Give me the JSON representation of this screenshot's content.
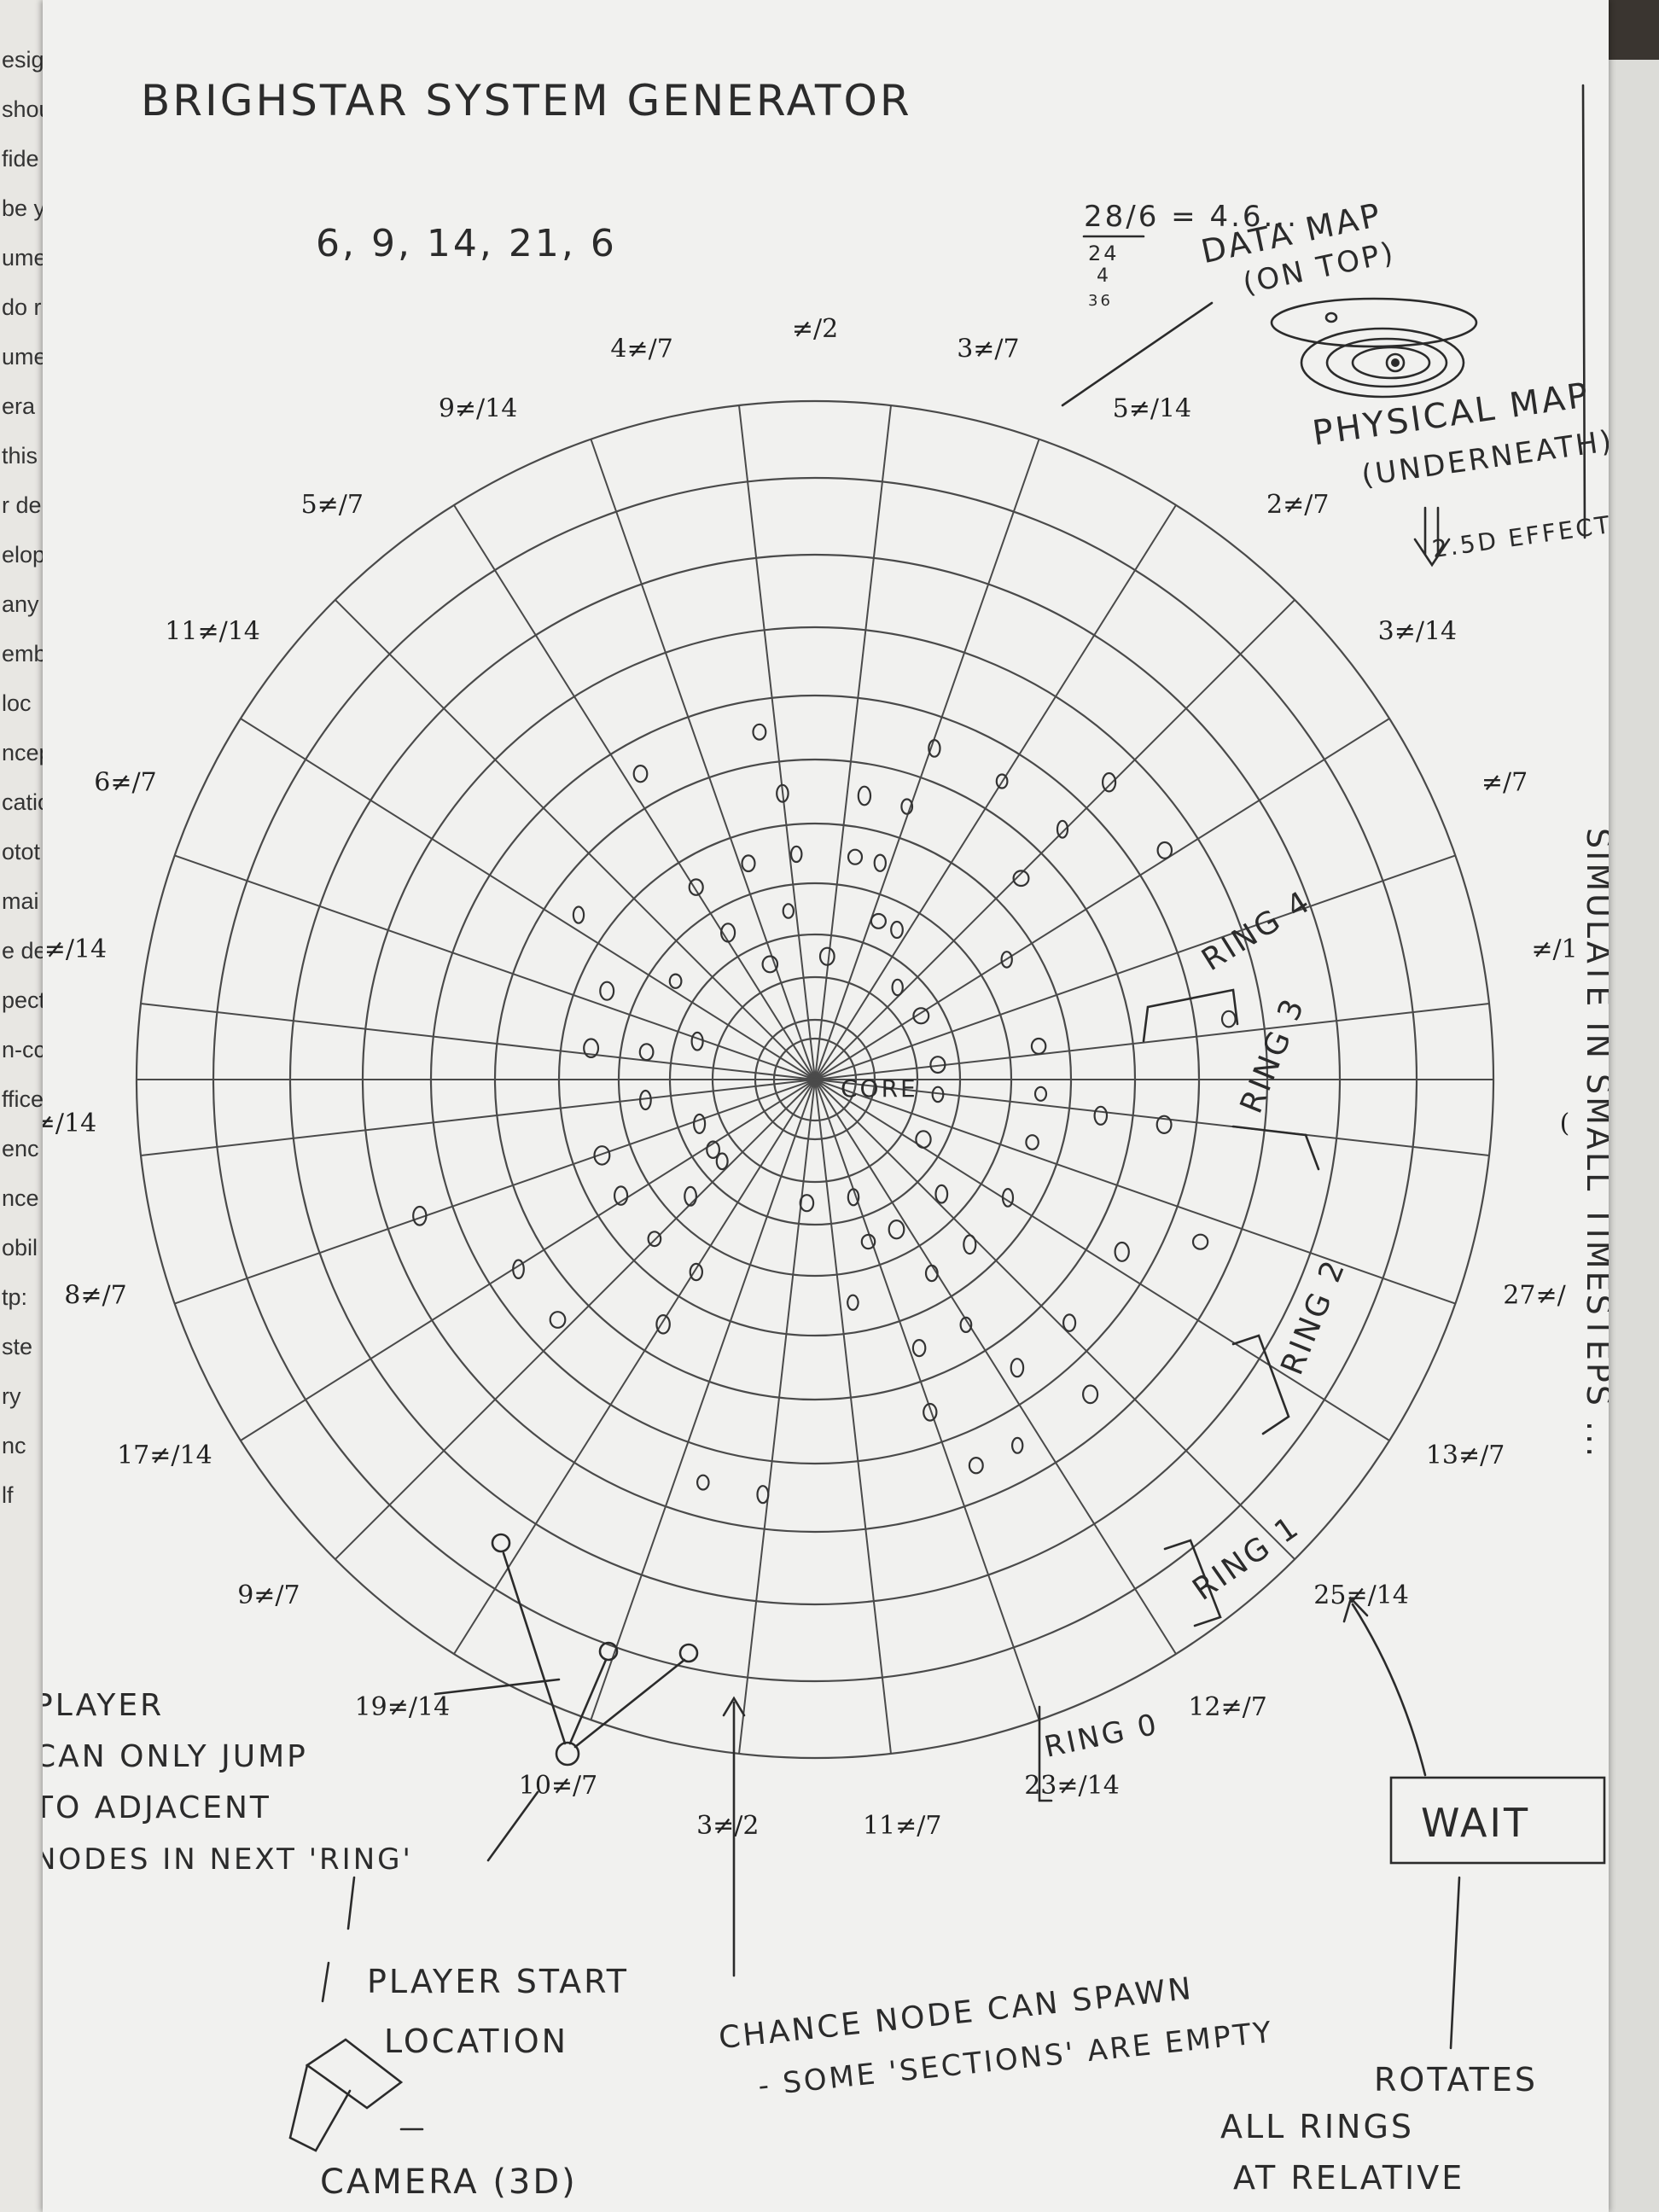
{
  "title": "BRIGHSTAR SYSTEM GENERATOR",
  "sequence_note": "6, 9, 14, 21, 6",
  "calc_note": {
    "line1": "28/6 = 4.6...",
    "line2": "24",
    "line3": "4",
    "line4": "36"
  },
  "data_map_label": {
    "line1": "DATA MAP",
    "line2": "(ON TOP)"
  },
  "physical_map_label": {
    "line1": "PHYSICAL MAP",
    "line2": "(UNDERNEATH)",
    "line3": "2.5D EFFECT"
  },
  "segment_labels": [
    "≠/2",
    "3≠/7",
    "5≠/14",
    "2≠/7",
    "3≠/14",
    "≠/7",
    "≠/1",
    "(",
    "27≠/",
    "13≠/7",
    "25≠/14",
    "12≠/7",
    "23≠/14",
    "11≠/7",
    "3≠/2",
    "10≠/7",
    "19≠/14",
    "9≠/7",
    "17≠/14",
    "8≠/7",
    "≠/14",
    "≠/14",
    "6≠/7",
    "11≠/14",
    "5≠/7",
    "9≠/14",
    "4≠/7"
  ],
  "core_label": "CORE",
  "ring_labels": [
    "RING 4",
    "RING 3",
    "RING 2",
    "RING 1",
    "RING 0"
  ],
  "annotations": {
    "player_jump": {
      "line1": "PLAYER",
      "line2": "CAN ONLY JUMP",
      "line3": "TO ADJACENT",
      "line4": "NODES IN NEXT 'RING'"
    },
    "player_start": {
      "line1": "PLAYER START",
      "line2": "LOCATION"
    },
    "chance_node": {
      "line1": "CHANCE NODE CAN SPAWN",
      "line2": "- SOME 'SECTIONS' ARE EMPTY"
    },
    "camera": "CAMERA (3D)",
    "wait": "WAIT",
    "rotates": {
      "line1": "ROTATES",
      "line2": "ALL RINGS",
      "line3": "AT RELATIVE"
    },
    "side_note": "SIMULATE IN SMALL TIMESTEPS ...",
    "left_fragments": [
      "esigr",
      "shou",
      "fide",
      "be y",
      "ume",
      "do r",
      "ume",
      "era",
      "this",
      "r de",
      "elop",
      "any",
      "emb",
      "loc",
      "ncep",
      "catio",
      "otot",
      "mai",
      "e de",
      "pect",
      "n-cc",
      "ffice",
      "enc",
      "nce",
      "obil",
      "tp:",
      "ste",
      "ry",
      "nc",
      "lf"
    ]
  }
}
